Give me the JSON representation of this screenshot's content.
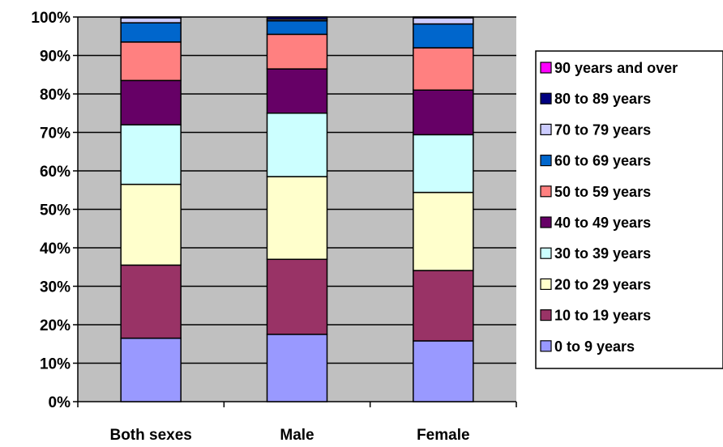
{
  "chart_data": {
    "type": "bar",
    "stacked": "percent",
    "categories": [
      "Both sexes",
      "Male",
      "Female"
    ],
    "y_ticks": [
      "0%",
      "10%",
      "20%",
      "30%",
      "40%",
      "50%",
      "60%",
      "70%",
      "80%",
      "90%",
      "100%"
    ],
    "ylim": [
      0,
      100
    ],
    "grid": true,
    "legend_position": "right",
    "series": [
      {
        "name": "0 to 9 years",
        "color": "#9999FF",
        "values": [
          16.5,
          17.5,
          15.8
        ]
      },
      {
        "name": "10 to 19 years",
        "color": "#993366",
        "values": [
          19.0,
          19.5,
          18.3
        ]
      },
      {
        "name": "20 to 29 years",
        "color": "#FFFFCC",
        "values": [
          21.0,
          21.5,
          20.3
        ]
      },
      {
        "name": "30 to 39 years",
        "color": "#CCFFFF",
        "values": [
          15.5,
          16.5,
          15.0
        ]
      },
      {
        "name": "40 to 49 years",
        "color": "#660066",
        "values": [
          11.5,
          11.5,
          11.6
        ]
      },
      {
        "name": "50 to 59 years",
        "color": "#FF8080",
        "values": [
          10.0,
          9.0,
          11.0
        ]
      },
      {
        "name": "60 to 69 years",
        "color": "#0066CC",
        "values": [
          5.0,
          3.5,
          6.2
        ]
      },
      {
        "name": "70 to 79 years",
        "color": "#CCCCFF",
        "values": [
          1.3,
          0.4,
          1.6
        ]
      },
      {
        "name": "80 to 89 years",
        "color": "#000080",
        "values": [
          0.2,
          0.6,
          0.2
        ]
      },
      {
        "name": "90 years and over",
        "color": "#FF00FF",
        "values": [
          0.0,
          0.0,
          0.0
        ]
      }
    ]
  }
}
